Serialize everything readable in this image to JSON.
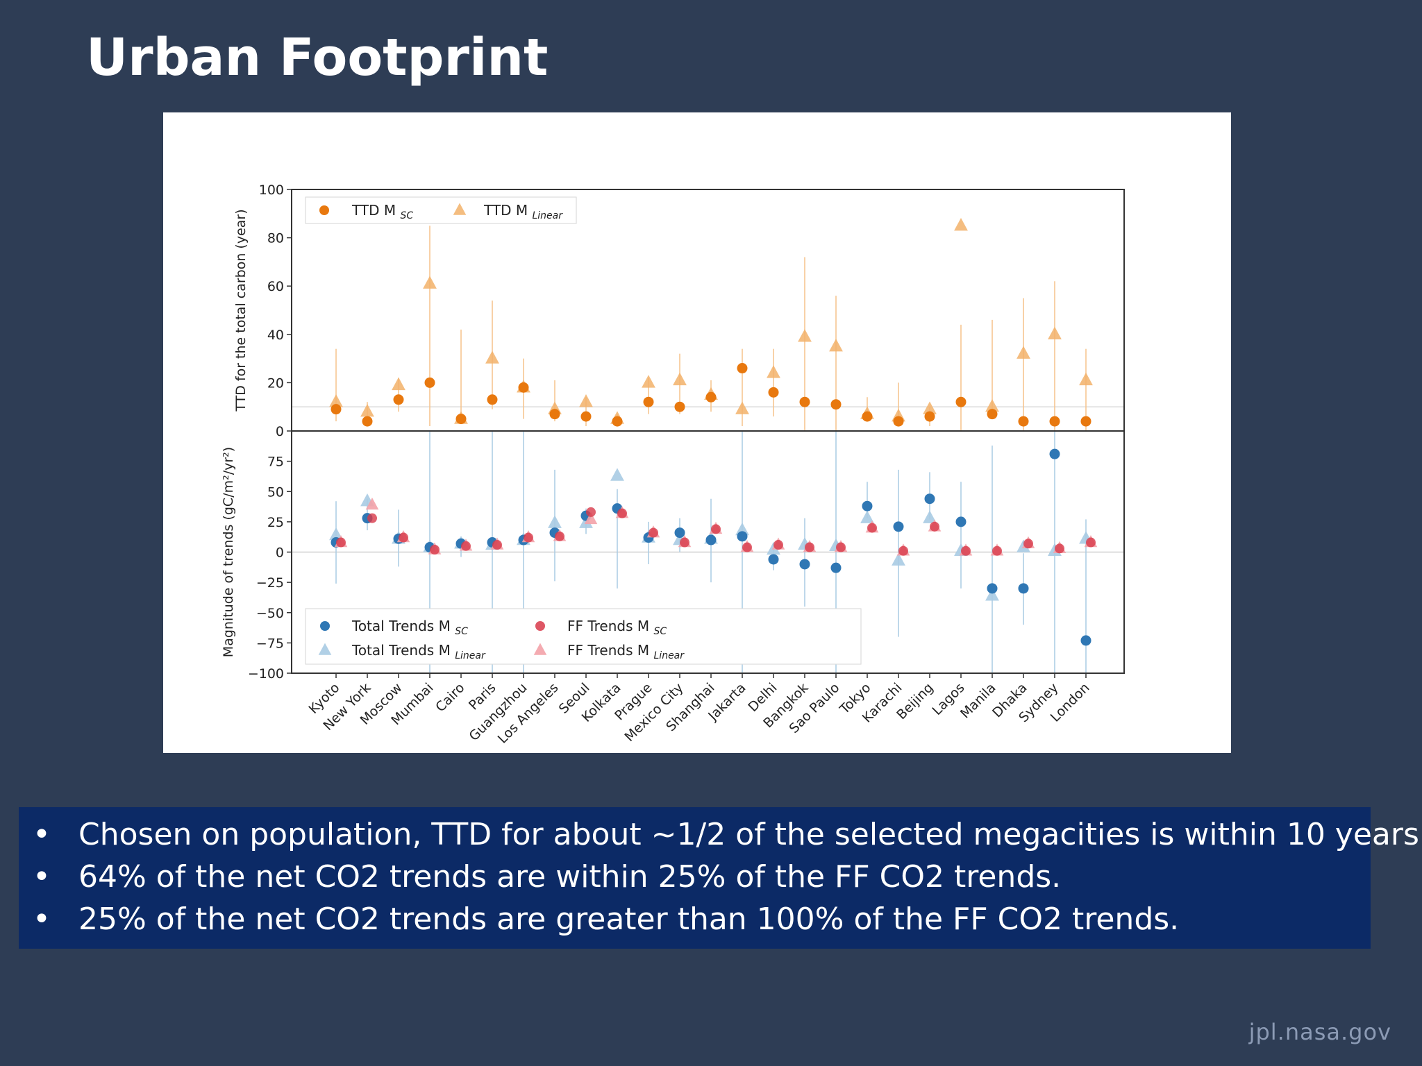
{
  "slide": {
    "title": "Urban Footprint",
    "footer": "jpl.nasa.gov",
    "bullets": [
      "Chosen on population, TTD for about ~1/2 of the selected megacities is within 10 years.",
      "64%  of the net CO2 trends are within 25% of the FF CO2 trends.",
      "25%  of the net CO2 trends are greater than  100% of the FF CO2 trends."
    ],
    "bullet_glyph": "•"
  },
  "colors": {
    "ttd_sc": "#e8780e",
    "ttd_linear": "#f2b26a",
    "total_sc": "#2f77b4",
    "total_linear": "#a9cbe3",
    "ff_sc": "#d83a4a",
    "ff_linear": "#f3a2a8",
    "err_ttd": "#f5c28a",
    "err_trend": "#a9cbe3"
  },
  "chart_data": [
    {
      "type": "scatter",
      "panel": "top",
      "title": "",
      "ylabel": "TTD for the total carbon (year)",
      "ylim": [
        0,
        100
      ],
      "yticks": [
        0,
        20,
        40,
        60,
        80,
        100
      ],
      "reference_line": 10,
      "legend_position": "top-left",
      "categories": [
        "Kyoto",
        "New York",
        "Moscow",
        "Mumbai",
        "Cairo",
        "Paris",
        "Guangzhou",
        "Los Angeles",
        "Seoul",
        "Kolkata",
        "Prague",
        "Mexico City",
        "Shanghai",
        "Jakarta",
        "Delhi",
        "Bangkok",
        "Sao Paulo",
        "Tokyo",
        "Karachi",
        "Beijing",
        "Lagos",
        "Manila",
        "Dhaka",
        "Sydney",
        "London"
      ],
      "series": [
        {
          "name": "TTD M",
          "subscript": "SC",
          "marker": "circle",
          "values": [
            9,
            4,
            13,
            20,
            5,
            13,
            18,
            7,
            6,
            4,
            12,
            10,
            14,
            26,
            16,
            12,
            11,
            6,
            4,
            6,
            12,
            7,
            4,
            4,
            4
          ],
          "err_low": [
            4,
            2,
            8,
            2,
            4,
            9,
            5,
            4,
            2,
            2,
            7,
            7,
            8,
            2,
            6,
            0,
            0,
            4,
            2,
            2,
            0,
            5,
            0,
            0,
            0
          ],
          "err_high": [
            34,
            12,
            22,
            85,
            42,
            54,
            30,
            21,
            14,
            7,
            22,
            32,
            21,
            34,
            34,
            72,
            56,
            14,
            20,
            10,
            44,
            46,
            55,
            62,
            34
          ]
        },
        {
          "name": "TTD M",
          "subscript": "Linear",
          "marker": "triangle",
          "values": [
            12,
            8,
            19,
            61,
            5,
            30,
            18,
            9,
            12,
            5,
            20,
            21,
            15,
            9,
            24,
            39,
            35,
            7,
            6,
            9,
            85,
            10,
            32,
            40,
            21
          ],
          "err_low": [],
          "err_high": []
        }
      ]
    },
    {
      "type": "scatter",
      "panel": "bottom",
      "title": "",
      "ylabel": "Magnitude of trends (gC/m²/yr²)",
      "ylim": [
        -100,
        100
      ],
      "yticks": [
        -100,
        -75,
        -50,
        -25,
        0,
        25,
        50,
        75
      ],
      "reference_line": 0,
      "legend_position": "bottom-left",
      "categories": [
        "Kyoto",
        "New York",
        "Moscow",
        "Mumbai",
        "Cairo",
        "Paris",
        "Guangzhou",
        "Los Angeles",
        "Seoul",
        "Kolkata",
        "Prague",
        "Mexico City",
        "Shanghai",
        "Jakarta",
        "Delhi",
        "Bangkok",
        "Sao Paulo",
        "Tokyo",
        "Karachi",
        "Beijing",
        "Lagos",
        "Manila",
        "Dhaka",
        "Sydney",
        "London"
      ],
      "series": [
        {
          "name": "Total Trends M",
          "subscript": "SC",
          "marker": "circle",
          "values": [
            8,
            28,
            11,
            4,
            7,
            8,
            10,
            16,
            30,
            36,
            12,
            16,
            10,
            13,
            -6,
            -10,
            -13,
            38,
            21,
            44,
            25,
            -30,
            -30,
            81,
            -73
          ],
          "err_low": [
            -26,
            18,
            -12,
            -100,
            -4,
            -100,
            -100,
            -24,
            15,
            -30,
            -10,
            0,
            -25,
            -100,
            -15,
            -45,
            -100,
            28,
            -70,
            27,
            -30,
            -100,
            -60,
            -100,
            -100
          ],
          "err_high": [
            42,
            44,
            35,
            100,
            8,
            100,
            100,
            68,
            36,
            52,
            25,
            28,
            44,
            100,
            2,
            28,
            100,
            58,
            68,
            66,
            58,
            88,
            -1,
            100,
            27
          ]
        },
        {
          "name": "Total Trends M",
          "subscript": "Linear",
          "marker": "triangle",
          "values": [
            14,
            42,
            11,
            4,
            7,
            6,
            10,
            24,
            24,
            63,
            12,
            10,
            11,
            18,
            2,
            6,
            5,
            28,
            -7,
            28,
            1,
            -36,
            4,
            1,
            11
          ]
        },
        {
          "name": "FF Trends M",
          "subscript": "SC",
          "marker": "circle",
          "values": [
            8,
            28,
            12,
            2,
            5,
            6,
            12,
            13,
            33,
            32,
            16,
            8,
            19,
            4,
            6,
            4,
            4,
            20,
            1,
            21,
            1,
            1,
            7,
            3,
            8
          ]
        },
        {
          "name": "FF Trends M",
          "subscript": "Linear",
          "marker": "triangle",
          "values": [
            8,
            39,
            12,
            2,
            5,
            6,
            12,
            13,
            27,
            32,
            16,
            8,
            19,
            4,
            6,
            4,
            4,
            20,
            1,
            21,
            1,
            1,
            7,
            3,
            8
          ]
        }
      ]
    }
  ]
}
